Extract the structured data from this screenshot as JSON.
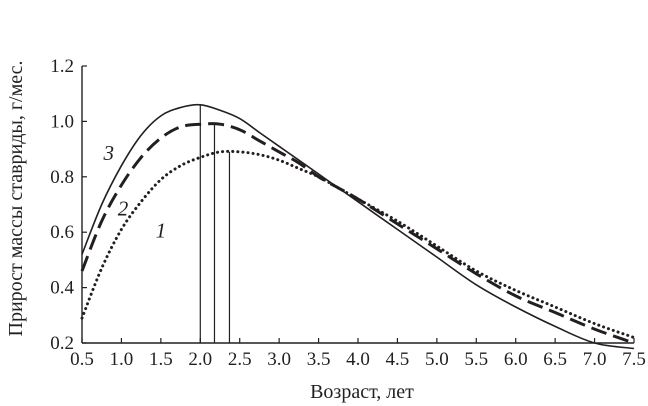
{
  "chart_data": {
    "type": "line",
    "xlabel": "Возраст, лет",
    "ylabel": "Прирост массы ставриды, г/мес.",
    "xlim": [
      0.5,
      7.5
    ],
    "ylim": [
      0.2,
      1.2
    ],
    "xticks": [
      "0.5",
      "1.0",
      "1.5",
      "2.0",
      "2.5",
      "3.0",
      "3.5",
      "4.0",
      "4.5",
      "5.0",
      "5.5",
      "6.0",
      "6.5",
      "7.0",
      "7.5"
    ],
    "yticks": [
      "0.2",
      "0.4",
      "0.6",
      "0.8",
      "1.0",
      "1.2"
    ],
    "grid": false,
    "series": [
      {
        "name": "1",
        "style": "dotted",
        "x": [
          0.5,
          0.75,
          1.0,
          1.25,
          1.5,
          1.75,
          2.0,
          2.25,
          2.5,
          2.75,
          3.0,
          3.25,
          3.5,
          3.75,
          4.0,
          4.5,
          5.0,
          5.5,
          6.0,
          6.5,
          7.0,
          7.5
        ],
        "y": [
          0.29,
          0.47,
          0.61,
          0.71,
          0.79,
          0.84,
          0.87,
          0.89,
          0.89,
          0.88,
          0.86,
          0.83,
          0.8,
          0.76,
          0.72,
          0.64,
          0.55,
          0.46,
          0.39,
          0.33,
          0.27,
          0.22
        ],
        "peak_x": 2.37
      },
      {
        "name": "2",
        "style": "dashed",
        "x": [
          0.5,
          0.75,
          1.0,
          1.25,
          1.5,
          1.75,
          2.0,
          2.25,
          2.5,
          2.75,
          3.0,
          3.25,
          3.5,
          3.75,
          4.0,
          4.5,
          5.0,
          5.5,
          6.0,
          6.5,
          7.0,
          7.5
        ],
        "y": [
          0.46,
          0.64,
          0.77,
          0.87,
          0.94,
          0.98,
          0.99,
          0.99,
          0.97,
          0.93,
          0.89,
          0.85,
          0.8,
          0.76,
          0.72,
          0.63,
          0.54,
          0.45,
          0.37,
          0.31,
          0.25,
          0.2
        ],
        "peak_x": 2.18
      },
      {
        "name": "3",
        "style": "solid",
        "x": [
          0.5,
          0.75,
          1.0,
          1.25,
          1.5,
          1.75,
          2.0,
          2.25,
          2.5,
          2.75,
          3.0,
          3.25,
          3.5,
          3.75,
          4.0,
          4.5,
          5.0,
          5.5,
          6.0,
          6.5,
          7.0,
          7.5
        ],
        "y": [
          0.52,
          0.7,
          0.84,
          0.95,
          1.02,
          1.05,
          1.06,
          1.04,
          1.01,
          0.96,
          0.91,
          0.86,
          0.81,
          0.76,
          0.71,
          0.61,
          0.51,
          0.41,
          0.33,
          0.26,
          0.2,
          0.18
        ],
        "peak_x": 2.0
      }
    ]
  },
  "colors": {
    "ink": "#231f20",
    "background": "#ffffff"
  }
}
